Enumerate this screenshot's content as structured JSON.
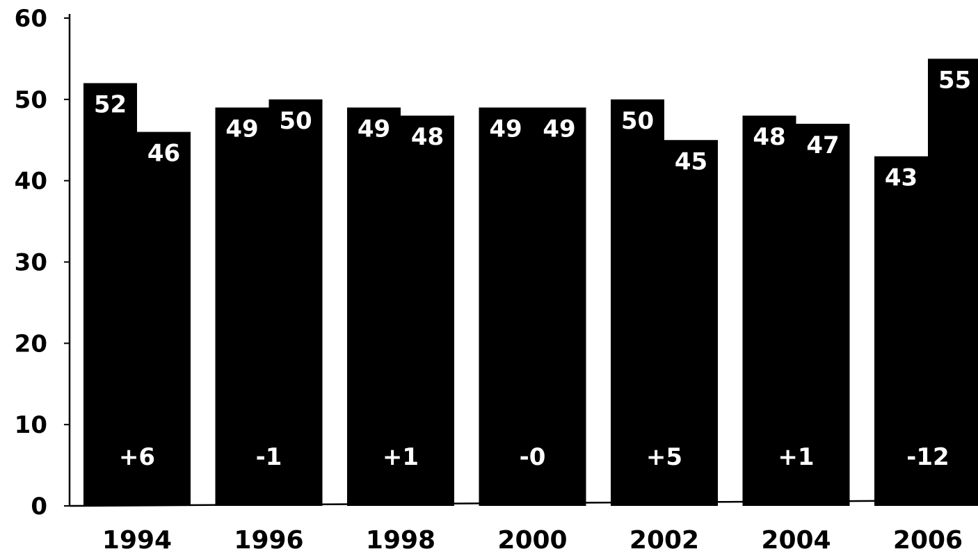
{
  "chart_data": {
    "type": "bar",
    "title": "",
    "xlabel": "",
    "ylabel": "",
    "ylim": [
      0,
      60
    ],
    "yticks": [
      "0",
      "10",
      "20",
      "30",
      "40",
      "50",
      "60"
    ],
    "categories": [
      "1994",
      "1996",
      "1998",
      "2000",
      "2002",
      "2004",
      "2006"
    ],
    "series": [
      {
        "values": [
          52,
          49,
          49,
          49,
          50,
          48,
          43
        ],
        "labels": [
          "52",
          "49",
          "49",
          "49",
          "50",
          "48",
          "43"
        ]
      },
      {
        "values": [
          46,
          50,
          48,
          49,
          45,
          47,
          55
        ],
        "labels": [
          "46",
          "50",
          "48",
          "49",
          "45",
          "47",
          "55"
        ]
      }
    ],
    "difference_labels": [
      "+6",
      "-1",
      "+1",
      "-0",
      "+5",
      "+1",
      "-12"
    ],
    "bar_color": "#000000",
    "value_label_color": "#ffffff",
    "grid": false,
    "legend": "none"
  }
}
